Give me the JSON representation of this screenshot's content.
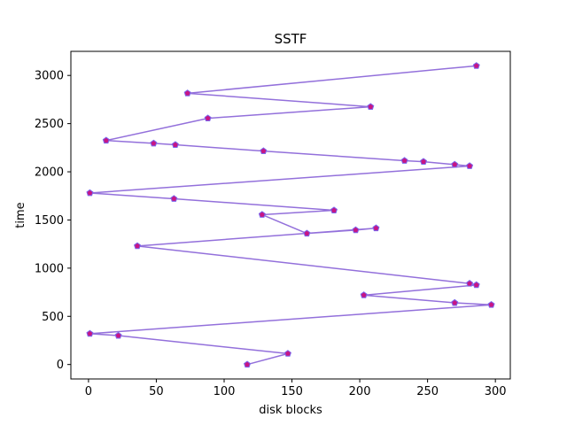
{
  "chart_data": {
    "type": "line",
    "title": "SSTF",
    "xlabel": "disk blocks",
    "ylabel": "time",
    "xlim": [
      -13,
      311
    ],
    "ylim": [
      -150,
      3250
    ],
    "xticks": [
      0,
      50,
      100,
      150,
      200,
      250,
      300
    ],
    "yticks": [
      0,
      500,
      1000,
      1500,
      2000,
      2500,
      3000
    ],
    "grid": false,
    "line_color": "#9370db",
    "marker_face_color": "#c71585",
    "marker_edge_color": "#7b68ee",
    "marker": "pentagon",
    "series": [
      {
        "x": [
          117,
          147,
          22,
          1,
          297,
          270,
          203,
          286,
          281,
          36,
          212,
          197,
          161,
          128,
          181,
          63,
          1,
          281,
          270,
          247,
          233,
          129,
          64,
          48,
          13,
          88,
          208,
          73,
          286
        ],
        "y": [
          0,
          113,
          300,
          320,
          620,
          640,
          720,
          825,
          840,
          1230,
          1415,
          1395,
          1360,
          1555,
          1600,
          1720,
          1780,
          2060,
          2075,
          2105,
          2115,
          2215,
          2280,
          2295,
          2325,
          2555,
          2675,
          2815,
          3100
        ]
      }
    ]
  }
}
